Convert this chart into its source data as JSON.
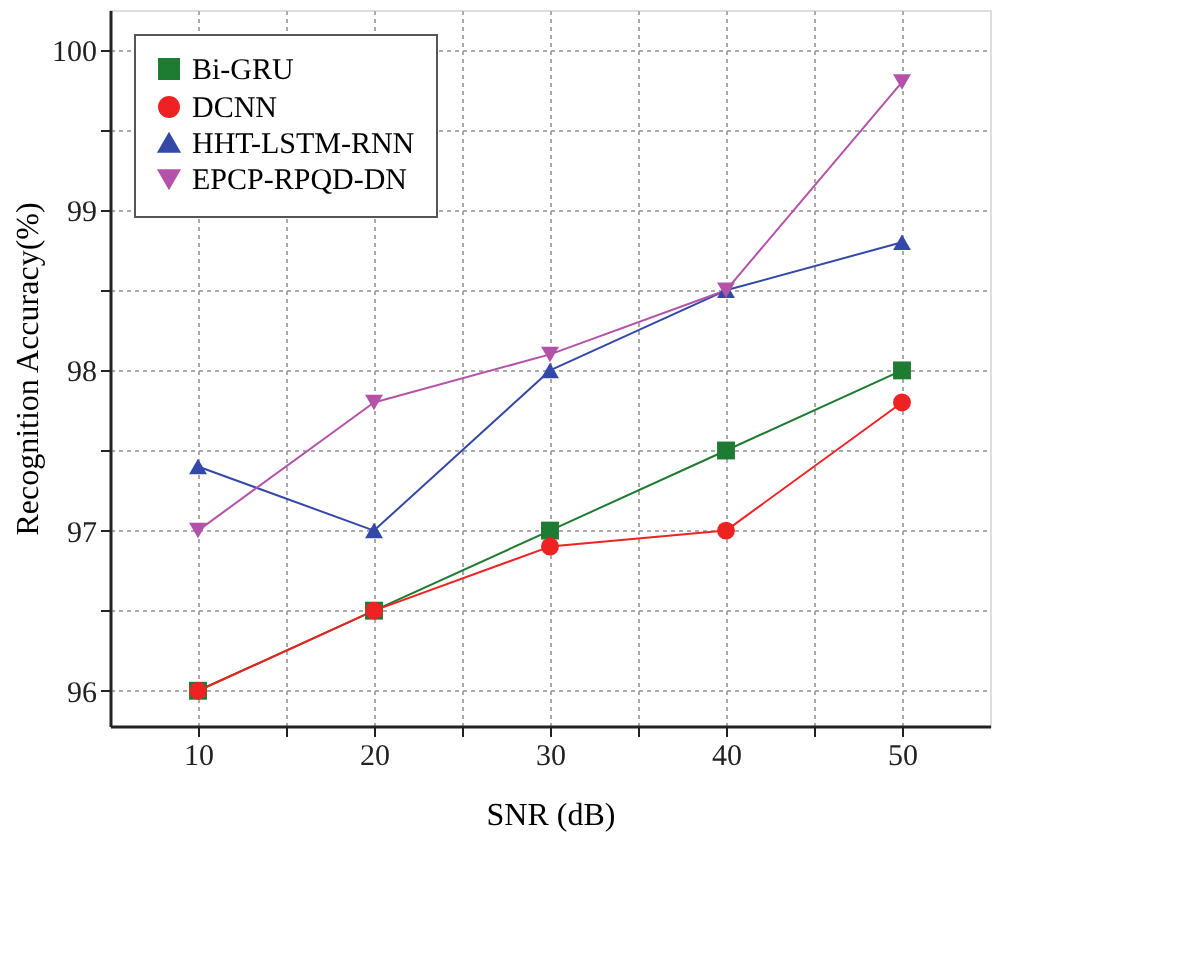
{
  "chart_data": {
    "type": "line",
    "xlabel": "SNR (dB)",
    "ylabel": "Recognition Accuracy(%)",
    "x": [
      10,
      20,
      30,
      40,
      50
    ],
    "series": [
      {
        "name": "Bi-GRU",
        "color": "#1e7b32",
        "marker": "square",
        "values": [
          96,
          96.5,
          97,
          97.5,
          98
        ]
      },
      {
        "name": "DCNN",
        "color": "#ee2222",
        "marker": "circle",
        "values": [
          96,
          96.5,
          96.9,
          97,
          97.8
        ]
      },
      {
        "name": "HHT-LSTM-RNN",
        "color": "#3348a8",
        "marker": "triangle",
        "values": [
          97.4,
          97,
          98,
          98.5,
          98.8
        ]
      },
      {
        "name": "EPCP-RPQD-DN",
        "color": "#b352a8",
        "marker": "triangle_down",
        "values": [
          97,
          97.8,
          98.1,
          98.5,
          99.8
        ]
      }
    ],
    "xlim": [
      5,
      55
    ],
    "xticks": [
      10,
      {
        "value": 15,
        "label": null
      },
      20,
      {
        "value": 25,
        "label": null
      },
      30,
      {
        "value": 35,
        "label": null
      },
      40,
      {
        "value": 45,
        "label": null
      },
      50
    ],
    "ylim": [
      95.78,
      100.25
    ],
    "yticks": [
      96,
      {
        "value": 96.5,
        "label": null
      },
      97,
      {
        "value": 97.5,
        "label": null
      },
      98,
      {
        "value": 98.5,
        "label": null
      },
      99,
      {
        "value": 99.5,
        "label": null
      },
      100
    ],
    "grid": true,
    "legend": "top left",
    "line_style": "solid"
  }
}
